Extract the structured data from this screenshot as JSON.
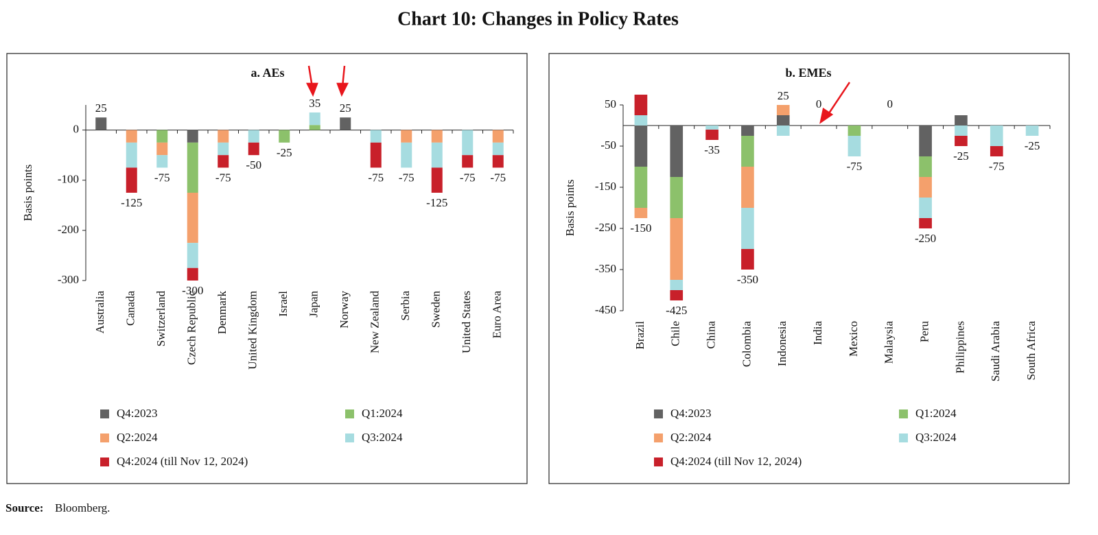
{
  "title": "Chart 10: Changes in Policy Rates",
  "source_label": "Source:",
  "source_text": "Bloomberg.",
  "chart_data": [
    {
      "type": "bar",
      "stacked": true,
      "title": "a. AEs",
      "y_label": "Basis points",
      "categories": [
        "Australia",
        "Canada",
        "Switzerland",
        "Czech Republic",
        "Denmark",
        "United Kingdom",
        "Israel",
        "Japan",
        "Norway",
        "New Zealand",
        "Serbia",
        "Sweden",
        "United States",
        "Euro Area"
      ],
      "series": [
        {
          "name": "Q4:2023",
          "color": "#626262",
          "values": [
            25,
            0,
            0,
            -25,
            0,
            0,
            0,
            0,
            25,
            0,
            0,
            0,
            0,
            0
          ]
        },
        {
          "name": "Q1:2024",
          "color": "#8cc16b",
          "values": [
            0,
            0,
            -25,
            -100,
            0,
            0,
            -25,
            10,
            0,
            0,
            0,
            0,
            0,
            0
          ]
        },
        {
          "name": "Q2:2024",
          "color": "#f4a06c",
          "values": [
            0,
            -25,
            -25,
            -100,
            -25,
            0,
            0,
            0,
            0,
            0,
            -25,
            -25,
            0,
            -25
          ]
        },
        {
          "name": "Q3:2024",
          "color": "#a6dce0",
          "values": [
            0,
            -50,
            -25,
            -50,
            -25,
            -25,
            0,
            25,
            0,
            -25,
            -50,
            -50,
            -50,
            -25
          ]
        },
        {
          "name": "Q4:2024 (till Nov 12, 2024)",
          "color": "#c8202a",
          "values": [
            0,
            -50,
            0,
            -25,
            -25,
            -25,
            0,
            0,
            0,
            -50,
            0,
            -50,
            -25,
            -25
          ]
        }
      ],
      "totals": [
        25,
        -125,
        -75,
        -300,
        -75,
        -50,
        -25,
        35,
        25,
        -75,
        -75,
        -125,
        -75,
        -75
      ],
      "ylim": [
        -300,
        50
      ],
      "yticks": [
        0,
        -100,
        -200,
        -300
      ]
    },
    {
      "type": "bar",
      "stacked": true,
      "title": "b. EMEs",
      "y_label": "Basis points",
      "categories": [
        "Brazil",
        "Chile",
        "China",
        "Colombia",
        "Indonesia",
        "India",
        "Mexico",
        "Malaysia",
        "Peru",
        "Philippines",
        "Saudi Arabia",
        "South Africa"
      ],
      "series": [
        {
          "name": "Q4:2023",
          "color": "#626262",
          "values": [
            -100,
            -125,
            0,
            -25,
            25,
            0,
            0,
            0,
            -75,
            25,
            0,
            0
          ]
        },
        {
          "name": "Q1:2024",
          "color": "#8cc16b",
          "values": [
            -100,
            -100,
            0,
            -75,
            0,
            0,
            -25,
            0,
            -50,
            0,
            0,
            0
          ]
        },
        {
          "name": "Q2:2024",
          "color": "#f4a06c",
          "values": [
            -25,
            -150,
            0,
            -100,
            25,
            0,
            0,
            0,
            -50,
            0,
            0,
            0
          ]
        },
        {
          "name": "Q3:2024",
          "color": "#a6dce0",
          "values": [
            25,
            -25,
            -10,
            -100,
            -25,
            0,
            -50,
            0,
            -50,
            -25,
            -50,
            -25
          ]
        },
        {
          "name": "Q4:2024 (till Nov 12, 2024)",
          "color": "#c8202a",
          "values": [
            50,
            -25,
            -25,
            -50,
            0,
            0,
            0,
            0,
            -25,
            -25,
            -25,
            0
          ]
        }
      ],
      "totals": [
        -150,
        -425,
        -35,
        -350,
        25,
        0,
        -75,
        0,
        -250,
        -25,
        -75,
        -25
      ],
      "ylim": [
        -450,
        50
      ],
      "yticks": [
        50,
        -50,
        -150,
        -250,
        -350,
        -450
      ]
    }
  ]
}
